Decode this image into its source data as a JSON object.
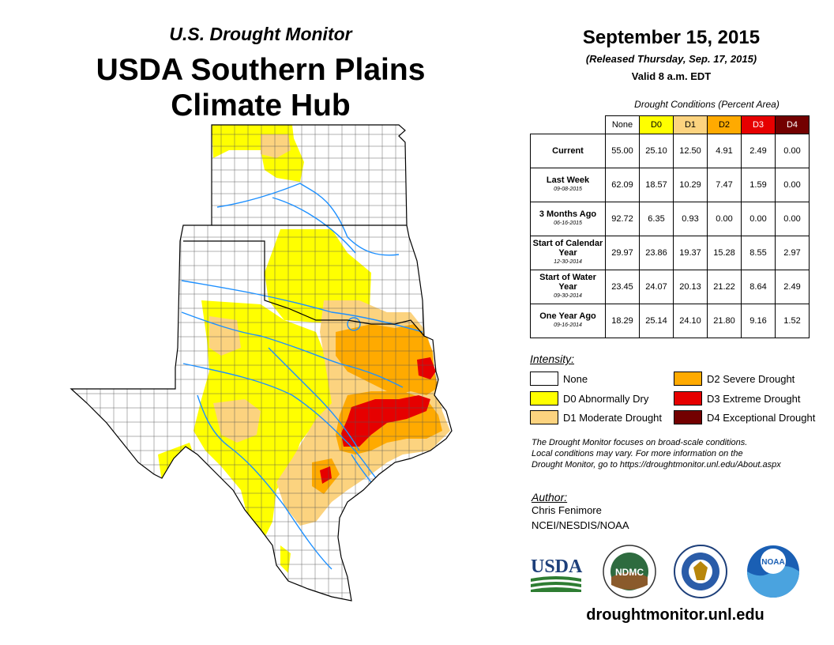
{
  "header": {
    "subtitle": "U.S. Drought Monitor",
    "title_line1": "USDA Southern Plains",
    "title_line2": "Climate Hub"
  },
  "map_release": {
    "date": "September 15, 2015",
    "released": "(Released Thursday, Sep. 17, 2015)",
    "valid": "Valid 8 a.m. EDT"
  },
  "stats_table": {
    "caption": "Drought Conditions (Percent Area)",
    "columns": [
      {
        "label": "None",
        "color": "#ffffff",
        "text_color": "#000000"
      },
      {
        "label": "D0",
        "color": "#ffff00",
        "text_color": "#000000"
      },
      {
        "label": "D1",
        "color": "#fcd37f",
        "text_color": "#000000"
      },
      {
        "label": "D2",
        "color": "#ffaa00",
        "text_color": "#000000"
      },
      {
        "label": "D3",
        "color": "#e60000",
        "text_color": "#ffffff"
      },
      {
        "label": "D4",
        "color": "#730000",
        "text_color": "#ffffff"
      }
    ],
    "rows": [
      {
        "label": "Current",
        "date": "",
        "values": [
          "55.00",
          "25.10",
          "12.50",
          "4.91",
          "2.49",
          "0.00"
        ]
      },
      {
        "label": "Last Week",
        "date": "09-08-2015",
        "values": [
          "62.09",
          "18.57",
          "10.29",
          "7.47",
          "1.59",
          "0.00"
        ]
      },
      {
        "label": "3 Months Ago",
        "date": "06-16-2015",
        "values": [
          "92.72",
          "6.35",
          "0.93",
          "0.00",
          "0.00",
          "0.00"
        ]
      },
      {
        "label": "Start of Calendar Year",
        "date": "12-30-2014",
        "values": [
          "29.97",
          "23.86",
          "19.37",
          "15.28",
          "8.55",
          "2.97"
        ]
      },
      {
        "label": "Start of Water Year",
        "date": "09-30-2014",
        "values": [
          "23.45",
          "24.07",
          "20.13",
          "21.22",
          "8.64",
          "2.49"
        ]
      },
      {
        "label": "One Year Ago",
        "date": "09-16-2014",
        "values": [
          "18.29",
          "25.14",
          "24.10",
          "21.80",
          "9.16",
          "1.52"
        ]
      }
    ]
  },
  "legend": {
    "title": "Intensity:",
    "items": [
      {
        "label": "None",
        "color": "#ffffff"
      },
      {
        "label": "D0 Abnormally Dry",
        "color": "#ffff00"
      },
      {
        "label": "D1 Moderate Drought",
        "color": "#fcd37f"
      },
      {
        "label": "D2 Severe Drought",
        "color": "#ffaa00"
      },
      {
        "label": "D3 Extreme Drought",
        "color": "#e60000"
      },
      {
        "label": "D4 Exceptional Drought",
        "color": "#730000"
      }
    ]
  },
  "note": {
    "line1": "The Drought Monitor focuses on broad-scale conditions.",
    "line2": "Local conditions may vary. For more information on the",
    "line3": "Drought Monitor, go to https://droughtmonitor.unl.edu/About.aspx"
  },
  "author": {
    "label": "Author:",
    "name": "Chris Fenimore",
    "org": "NCEI/NESDIS/NOAA"
  },
  "logos": {
    "usda": "USDA",
    "ndmc": "NDMC",
    "noaa": "NOAA"
  },
  "footer": {
    "url": "droughtmonitor.unl.edu"
  },
  "map": {
    "region": "Kansas, Oklahoma, Texas",
    "colors": {
      "none": "#ffffff",
      "d0": "#ffff00",
      "d1": "#fcd37f",
      "d2": "#ffaa00",
      "d3": "#e60000",
      "river": "#1e90ff"
    }
  }
}
